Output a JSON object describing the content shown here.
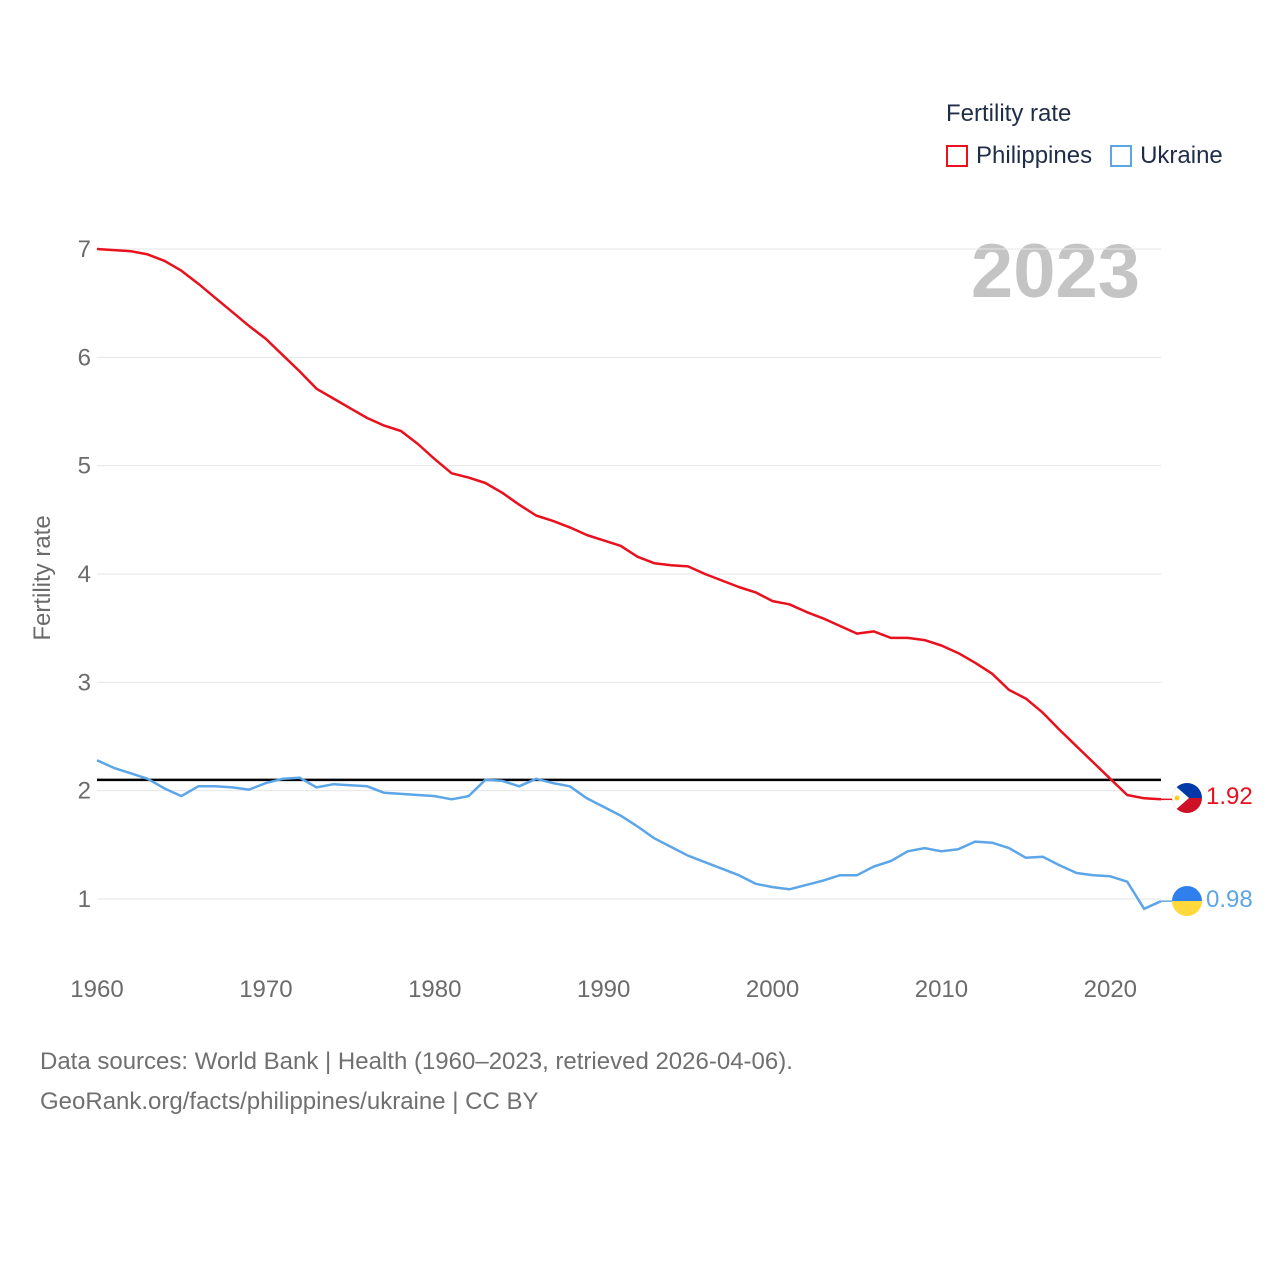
{
  "chart_data": {
    "type": "line",
    "legend_title": "Fertility rate",
    "ylabel": "Fertility rate",
    "current_year_label": "2023",
    "x": [
      1960,
      1961,
      1962,
      1963,
      1964,
      1965,
      1966,
      1967,
      1968,
      1969,
      1970,
      1971,
      1972,
      1973,
      1974,
      1975,
      1976,
      1977,
      1978,
      1979,
      1980,
      1981,
      1982,
      1983,
      1984,
      1985,
      1986,
      1987,
      1988,
      1989,
      1990,
      1991,
      1992,
      1993,
      1994,
      1995,
      1996,
      1997,
      1998,
      1999,
      2000,
      2001,
      2002,
      2003,
      2004,
      2005,
      2006,
      2007,
      2008,
      2009,
      2010,
      2011,
      2012,
      2013,
      2014,
      2015,
      2016,
      2017,
      2018,
      2019,
      2020,
      2021,
      2022,
      2023
    ],
    "xlim": [
      1960,
      2023
    ],
    "ylim": [
      0.5,
      7.25
    ],
    "xticks": [
      1960,
      1970,
      1980,
      1990,
      2000,
      2010,
      2020
    ],
    "yticks": [
      1,
      2,
      3,
      4,
      5,
      6,
      7
    ],
    "reference_line": 2.1,
    "series": [
      {
        "name": "Philippines",
        "color": "#e8111d",
        "flag": "philippines-flag",
        "end_label": "1.92",
        "values": [
          7.0,
          6.99,
          6.98,
          6.95,
          6.89,
          6.8,
          6.68,
          6.55,
          6.42,
          6.29,
          6.17,
          6.02,
          5.87,
          5.71,
          5.62,
          5.53,
          5.44,
          5.37,
          5.32,
          5.2,
          5.06,
          4.93,
          4.89,
          4.84,
          4.75,
          4.64,
          4.54,
          4.49,
          4.43,
          4.36,
          4.31,
          4.26,
          4.16,
          4.1,
          4.08,
          4.07,
          4.0,
          3.94,
          3.88,
          3.83,
          3.75,
          3.72,
          3.65,
          3.59,
          3.52,
          3.45,
          3.47,
          3.41,
          3.41,
          3.39,
          3.34,
          3.27,
          3.18,
          3.08,
          2.93,
          2.85,
          2.72,
          2.56,
          2.41,
          2.26,
          2.11,
          1.96,
          1.93,
          1.92
        ]
      },
      {
        "name": "Ukraine",
        "color": "#5ca6e8",
        "flag": "ukraine-flag",
        "end_label": "0.98",
        "values": [
          2.28,
          2.21,
          2.16,
          2.11,
          2.02,
          1.95,
          2.04,
          2.04,
          2.03,
          2.01,
          2.07,
          2.11,
          2.12,
          2.03,
          2.06,
          2.05,
          2.04,
          1.98,
          1.97,
          1.96,
          1.95,
          1.92,
          1.95,
          2.1,
          2.09,
          2.04,
          2.11,
          2.07,
          2.04,
          1.93,
          1.85,
          1.77,
          1.67,
          1.56,
          1.48,
          1.4,
          1.34,
          1.28,
          1.22,
          1.14,
          1.11,
          1.09,
          1.13,
          1.17,
          1.22,
          1.22,
          1.3,
          1.35,
          1.44,
          1.47,
          1.44,
          1.46,
          1.53,
          1.52,
          1.47,
          1.38,
          1.39,
          1.31,
          1.24,
          1.22,
          1.21,
          1.16,
          0.91,
          0.98
        ]
      }
    ]
  },
  "footer": {
    "line1": "Data sources: World Bank | Health (1960–2023, retrieved 2026-04-06).",
    "line2": "GeoRank.org/facts/philippines/ukraine | CC BY"
  }
}
